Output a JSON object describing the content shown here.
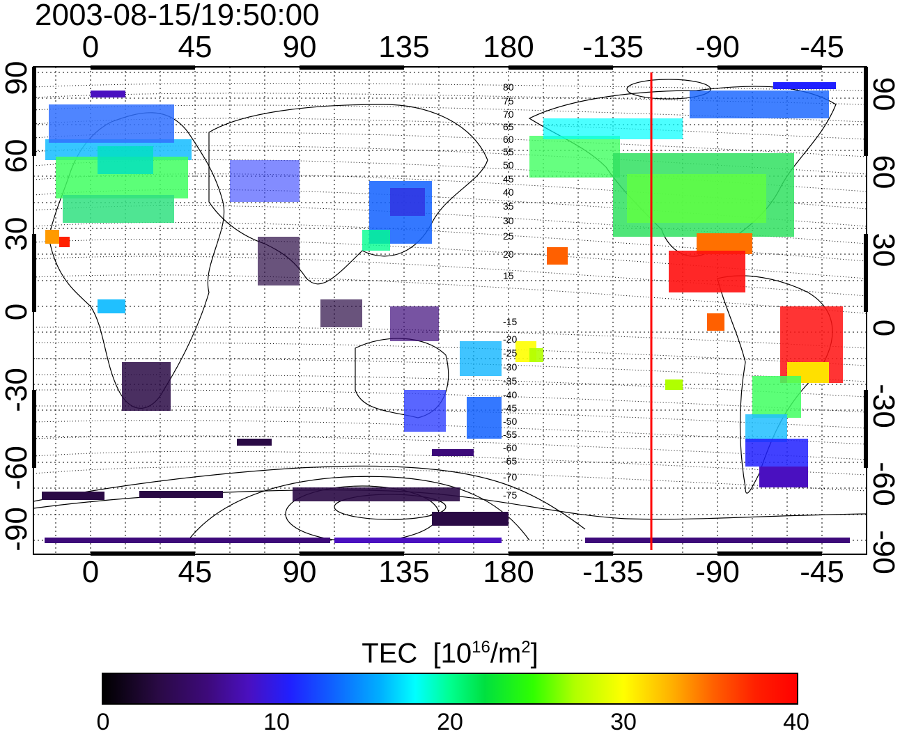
{
  "title": "2003-08-15/19:50:00",
  "lon_ticks_top": [
    "0",
    "45",
    "90",
    "135",
    "180",
    "-135",
    "-90",
    "-45"
  ],
  "lon_ticks_bottom": [
    "0",
    "45",
    "90",
    "135",
    "180",
    "-135",
    "-90",
    "-45"
  ],
  "lat_ticks_left": [
    "90",
    "60",
    "30",
    "0",
    "-30",
    "-60",
    "-90"
  ],
  "lat_ticks_right": [
    "90",
    "60",
    "30",
    "0",
    "-30",
    "-60",
    "-90"
  ],
  "contour_labels_north": [
    "80",
    "75",
    "70",
    "65",
    "60",
    "55",
    "50",
    "45",
    "40",
    "35",
    "30",
    "25",
    "20",
    "15"
  ],
  "contour_labels_south": [
    "-15",
    "-20",
    "-25",
    "-30",
    "-35",
    "-40",
    "-45",
    "-50",
    "-55",
    "-60",
    "-65",
    "-70",
    "-75"
  ],
  "marker_line_color": "#ff0000",
  "colorbar": {
    "title": "TEC",
    "unit_prefix": "[10",
    "unit_exp": "16",
    "unit_mid": "/m",
    "unit_exp2": "2",
    "unit_suffix": "]",
    "ticks": [
      "0",
      "10",
      "20",
      "30",
      "40"
    ],
    "min": 0,
    "max": 40
  }
}
